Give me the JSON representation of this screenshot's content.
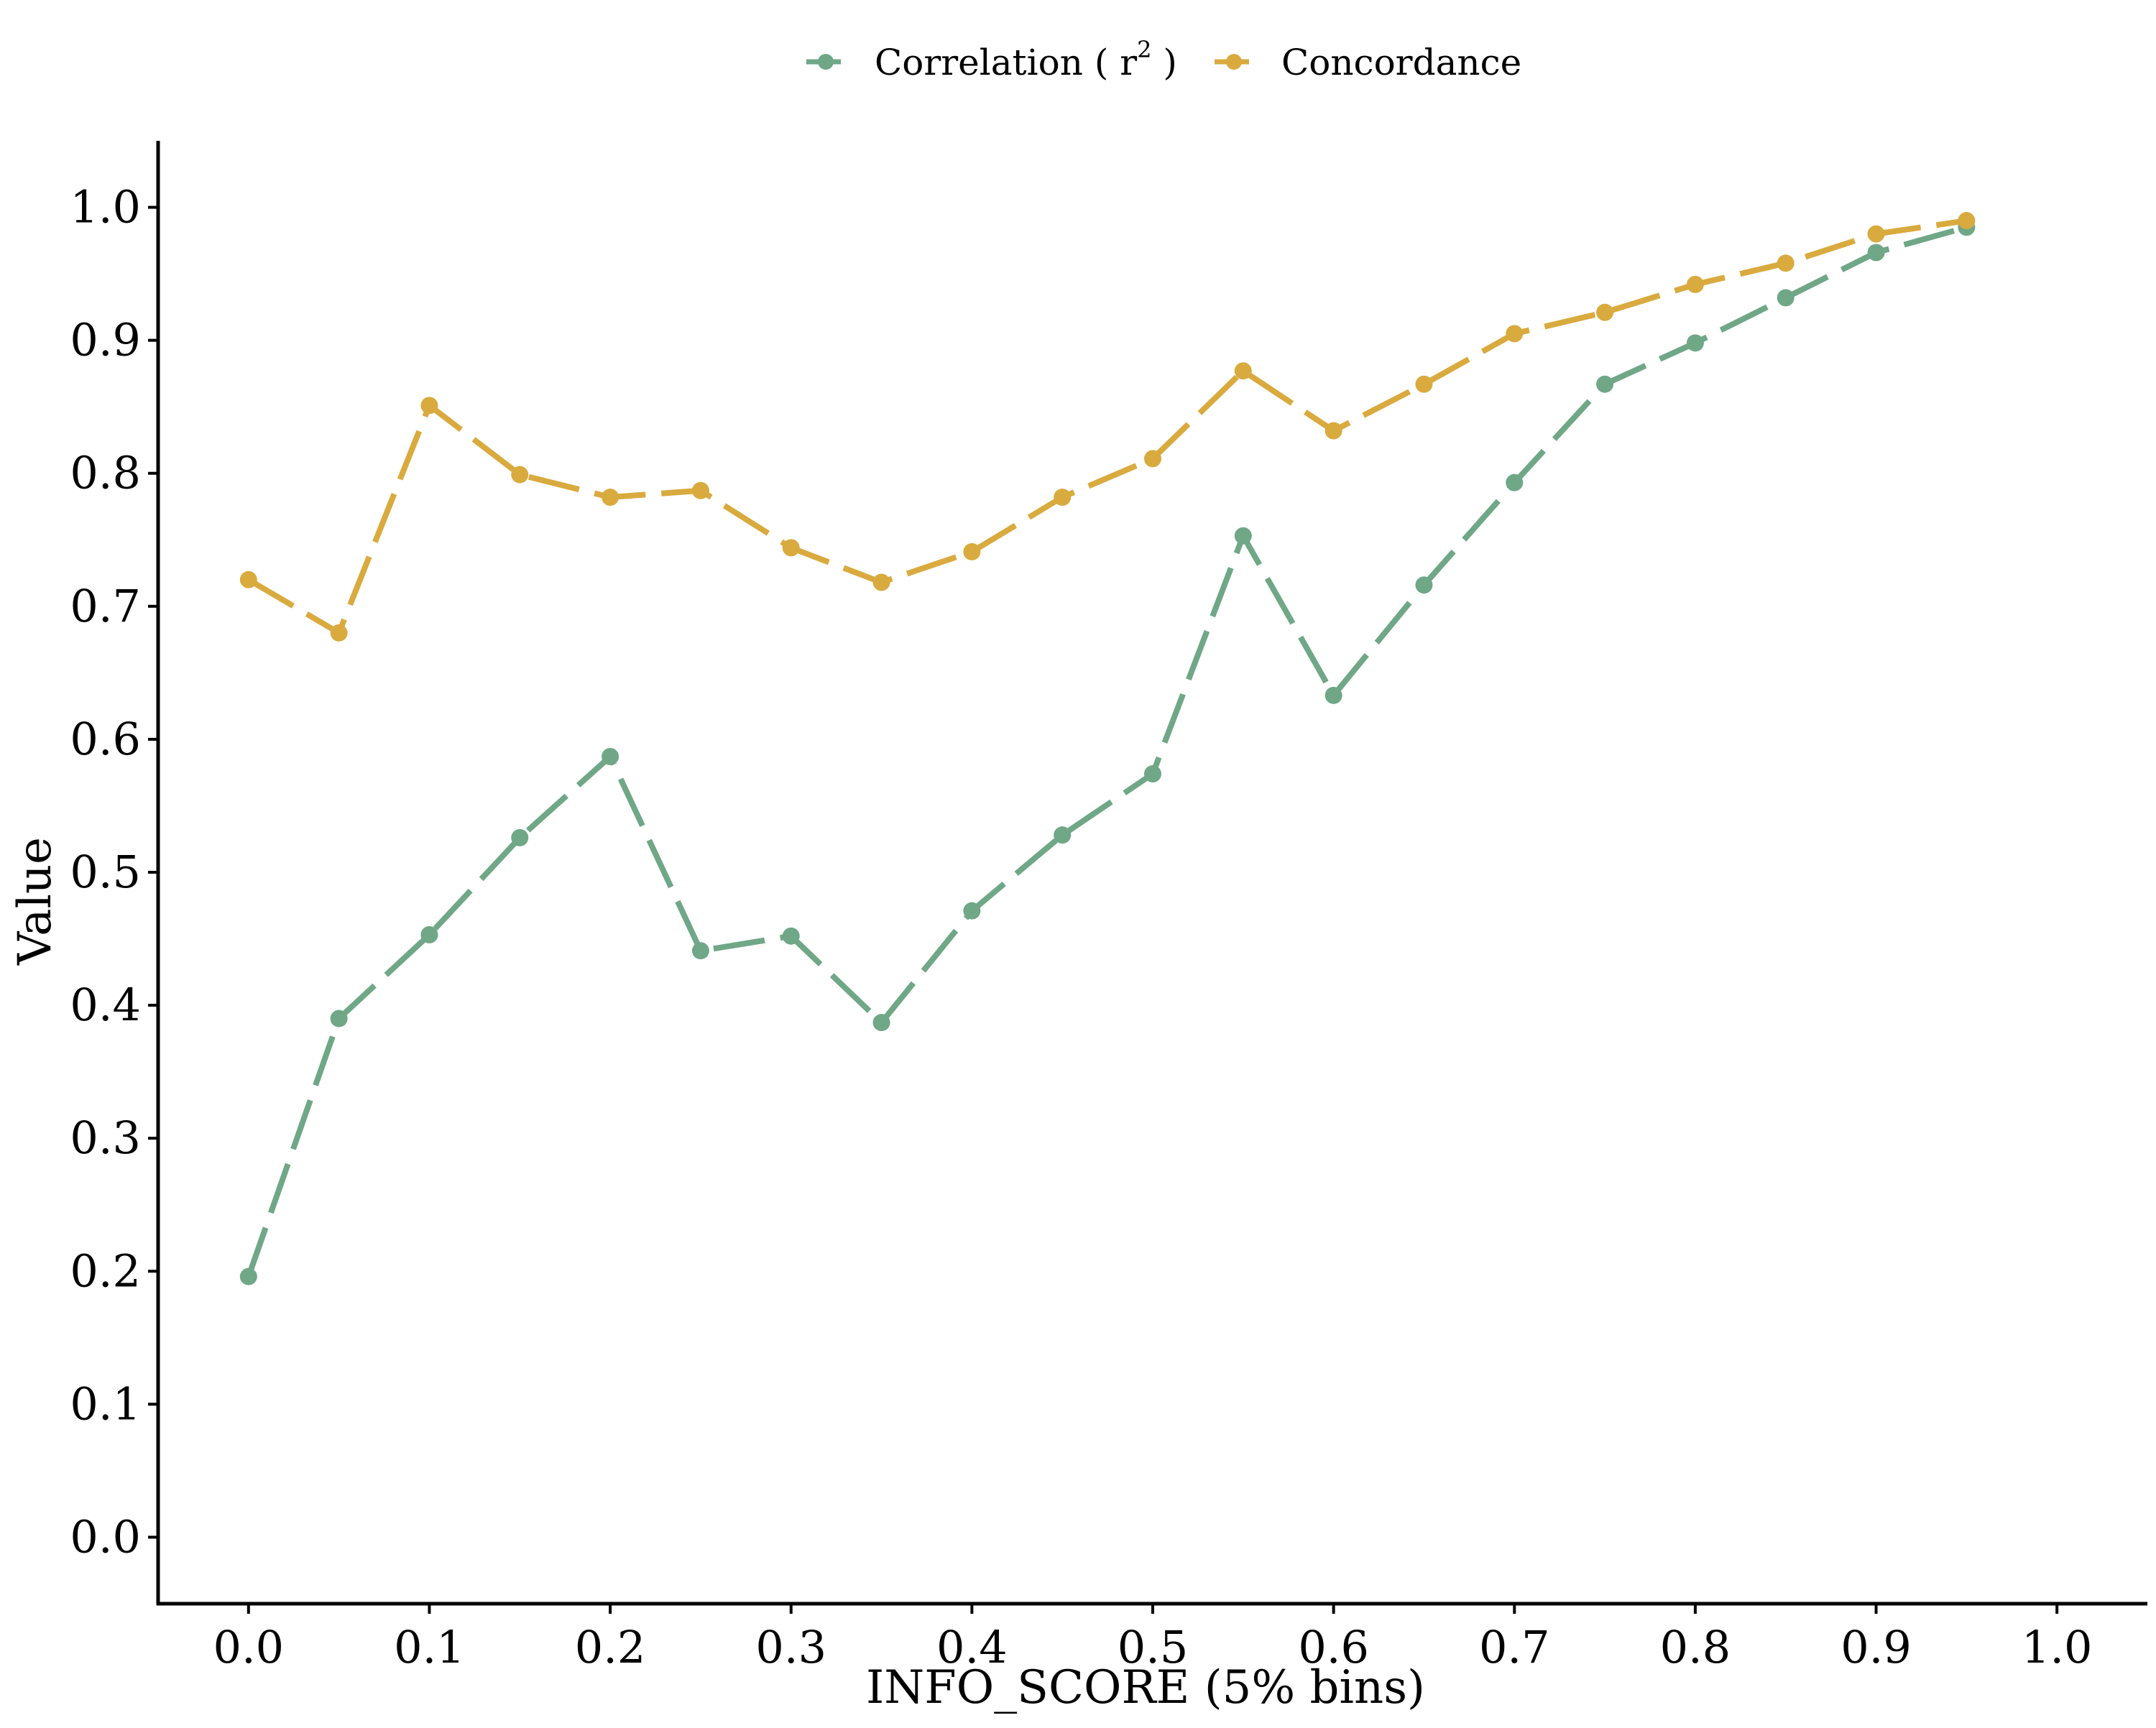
{
  "chart_data": {
    "type": "line",
    "xlabel": "INFO_SCORE (5% bins)",
    "ylabel": "Value",
    "xlim": [
      -0.05,
      1.05
    ],
    "ylim": [
      -0.05,
      1.05
    ],
    "x_ticks": [
      "0.0",
      "0.1",
      "0.2",
      "0.3",
      "0.4",
      "0.5",
      "0.6",
      "0.7",
      "0.8",
      "0.9",
      "1.0"
    ],
    "y_ticks": [
      "0.0",
      "0.1",
      "0.2",
      "0.3",
      "0.4",
      "0.5",
      "0.6",
      "0.7",
      "0.8",
      "0.9",
      "1.0"
    ],
    "grid": false,
    "legend_position": "top",
    "x": [
      0.0,
      0.05,
      0.1,
      0.15,
      0.2,
      0.25,
      0.3,
      0.35,
      0.4,
      0.45,
      0.5,
      0.55,
      0.6,
      0.65,
      0.7,
      0.75,
      0.8,
      0.85,
      0.9,
      0.95
    ],
    "series": [
      {
        "name": "Correlation ( r2 )",
        "legend_label": "Correlation ( r",
        "legend_sup": "2",
        "legend_suffix": " )",
        "color": "#6fa787",
        "line_style": "dashed",
        "values": [
          0.196,
          0.39,
          0.453,
          0.526,
          0.587,
          0.441,
          0.452,
          0.387,
          0.471,
          0.528,
          0.574,
          0.753,
          0.633,
          0.716,
          0.793,
          0.867,
          0.898,
          0.932,
          0.966,
          0.985
        ]
      },
      {
        "name": "Concordance",
        "legend_label": "Concordance",
        "color": "#d9aa3e",
        "line_style": "dashed",
        "values": [
          0.72,
          0.68,
          0.851,
          0.799,
          0.782,
          0.787,
          0.744,
          0.718,
          0.741,
          0.782,
          0.811,
          0.877,
          0.832,
          0.867,
          0.905,
          0.921,
          0.942,
          0.958,
          0.98,
          0.99
        ]
      }
    ]
  }
}
